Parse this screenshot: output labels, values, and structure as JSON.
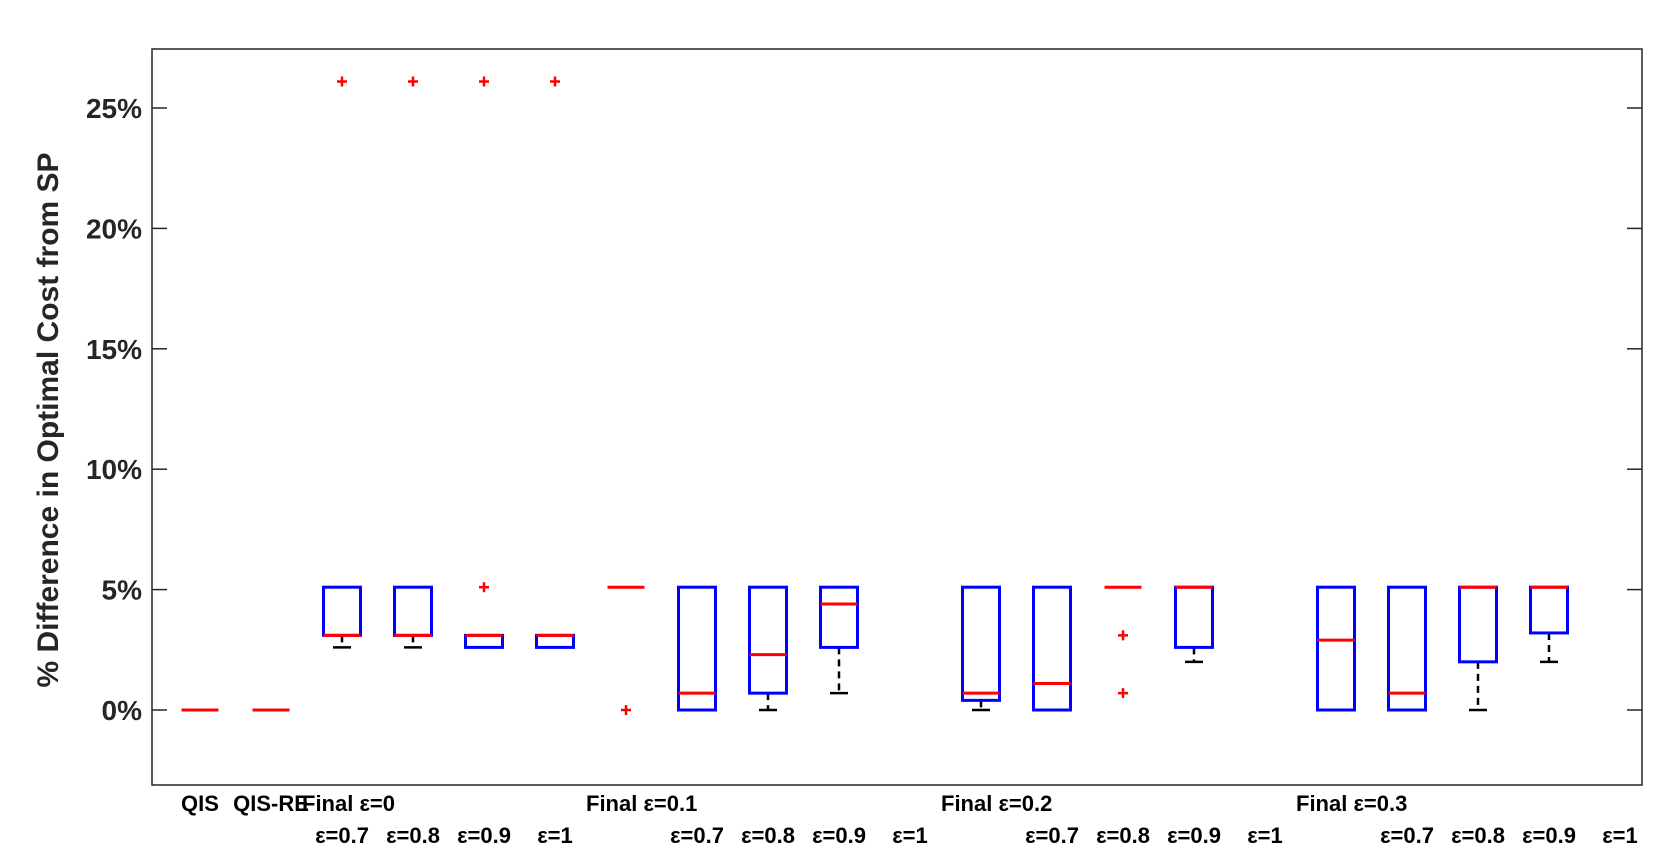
{
  "chart_data": {
    "type": "box",
    "title": "",
    "xlabel": "",
    "ylabel": "% Difference in Optimal Cost from SP",
    "ylim": [
      -3,
      28
    ],
    "yticks": [
      0,
      5,
      10,
      15,
      20,
      25
    ],
    "ytick_labels": [
      "0%",
      "5%",
      "10%",
      "15%",
      "20%",
      "25%"
    ],
    "grid": false,
    "colors": {
      "box": "#0000ff",
      "median": "#ff0000",
      "whisker": "#000000",
      "outlier": "#ff0000",
      "axis": "#262626"
    },
    "categories": [
      {
        "label": "QIS",
        "sublabel": ""
      },
      {
        "label": "QIS-RE",
        "sublabel": ""
      },
      {
        "label": "Final ε=0",
        "sublabel": "ε=0.7"
      },
      {
        "label": "",
        "sublabel": "ε=0.8"
      },
      {
        "label": "",
        "sublabel": "ε=0.9"
      },
      {
        "label": "",
        "sublabel": "ε=1"
      },
      {
        "label": "Final ε=0.1",
        "sublabel": ""
      },
      {
        "label": "",
        "sublabel": "ε=0.7"
      },
      {
        "label": "",
        "sublabel": "ε=0.8"
      },
      {
        "label": "",
        "sublabel": "ε=0.9"
      },
      {
        "label": "",
        "sublabel": "ε=1"
      },
      {
        "label": "Final ε=0.2",
        "sublabel": ""
      },
      {
        "label": "",
        "sublabel": "ε=0.7"
      },
      {
        "label": "",
        "sublabel": "ε=0.8"
      },
      {
        "label": "",
        "sublabel": "ε=0.9"
      },
      {
        "label": "",
        "sublabel": "ε=1"
      },
      {
        "label": "Final ε=0.3",
        "sublabel": ""
      },
      {
        "label": "",
        "sublabel": "ε=0.7"
      },
      {
        "label": "",
        "sublabel": "ε=0.8"
      },
      {
        "label": "",
        "sublabel": "ε=0.9"
      },
      {
        "label": "",
        "sublabel": "ε=1"
      }
    ],
    "boxes": [
      {
        "q1": 0.0,
        "median": 0.0,
        "q3": 0.0,
        "whisker_low": 0.0,
        "whisker_high": 0.0,
        "outliers": []
      },
      {
        "q1": 0.0,
        "median": 0.0,
        "q3": 0.0,
        "whisker_low": 0.0,
        "whisker_high": 0.0,
        "outliers": []
      },
      {
        "q1": 3.1,
        "median": 3.1,
        "q3": 5.1,
        "whisker_low": 2.6,
        "whisker_high": 5.1,
        "outliers": [
          26.1
        ]
      },
      {
        "q1": 3.1,
        "median": 3.1,
        "q3": 5.1,
        "whisker_low": 2.6,
        "whisker_high": 5.1,
        "outliers": [
          26.1
        ]
      },
      {
        "q1": 2.6,
        "median": 3.1,
        "q3": 3.1,
        "whisker_low": 2.6,
        "whisker_high": 3.1,
        "outliers": [
          5.1,
          26.1
        ]
      },
      {
        "q1": 2.6,
        "median": 3.1,
        "q3": 3.1,
        "whisker_low": 2.6,
        "whisker_high": 3.1,
        "outliers": [
          26.1
        ]
      },
      {
        "q1": 5.1,
        "median": 5.1,
        "q3": 5.1,
        "whisker_low": 5.1,
        "whisker_high": 5.1,
        "outliers": [
          0.0
        ]
      },
      {
        "q1": 0.0,
        "median": 0.7,
        "q3": 5.1,
        "whisker_low": 0.0,
        "whisker_high": 5.1,
        "outliers": []
      },
      {
        "q1": 0.7,
        "median": 2.3,
        "q3": 5.1,
        "whisker_low": 0.0,
        "whisker_high": 5.1,
        "outliers": []
      },
      {
        "q1": 2.6,
        "median": 4.4,
        "q3": 5.1,
        "whisker_low": 0.7,
        "whisker_high": 5.1,
        "outliers": []
      },
      null,
      {
        "q1": 0.4,
        "median": 0.7,
        "q3": 5.1,
        "whisker_low": 0.0,
        "whisker_high": 5.1,
        "outliers": []
      },
      {
        "q1": 0.0,
        "median": 1.1,
        "q3": 5.1,
        "whisker_low": 0.0,
        "whisker_high": 5.1,
        "outliers": []
      },
      {
        "q1": 5.1,
        "median": 5.1,
        "q3": 5.1,
        "whisker_low": 5.1,
        "whisker_high": 5.1,
        "outliers": [
          3.1,
          0.7
        ]
      },
      {
        "q1": 2.6,
        "median": 5.1,
        "q3": 5.1,
        "whisker_low": 2.0,
        "whisker_high": 5.1,
        "outliers": []
      },
      null,
      {
        "q1": 0.0,
        "median": 2.9,
        "q3": 5.1,
        "whisker_low": 0.0,
        "whisker_high": 5.1,
        "outliers": []
      },
      {
        "q1": 0.0,
        "median": 0.7,
        "q3": 5.1,
        "whisker_low": 0.0,
        "whisker_high": 5.1,
        "outliers": []
      },
      {
        "q1": 2.0,
        "median": 5.1,
        "q3": 5.1,
        "whisker_low": 0.0,
        "whisker_high": 5.1,
        "outliers": []
      },
      {
        "q1": 3.2,
        "median": 5.1,
        "q3": 5.1,
        "whisker_low": 2.0,
        "whisker_high": 5.1,
        "outliers": []
      },
      null
    ]
  }
}
